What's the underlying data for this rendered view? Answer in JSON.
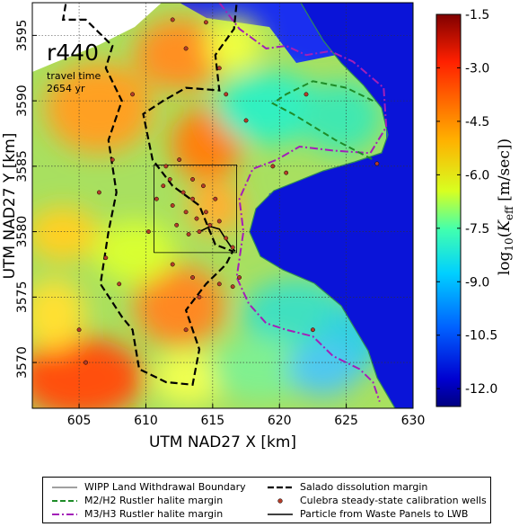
{
  "chart_data": {
    "type": "heatmap",
    "title": "",
    "xlabel": "UTM NAD27 X [km]",
    "ylabel": "UTM NAD27 Y [km]",
    "xlim": [
      601.5,
      630
    ],
    "ylim": [
      3566.5,
      3597.5
    ],
    "x_ticks": [
      "605",
      "610",
      "615",
      "620",
      "625",
      "630"
    ],
    "y_ticks": [
      "3570",
      "3575",
      "3580",
      "3585",
      "3590",
      "3595"
    ],
    "x_tick_values": [
      605,
      610,
      615,
      620,
      625,
      630
    ],
    "y_tick_values": [
      3570,
      3575,
      3580,
      3585,
      3590,
      3595
    ],
    "grid": true,
    "realization_label": "r440",
    "travel_time_line1": "travel time",
    "travel_time_line2": "2654 yr",
    "colorbar": {
      "label": "log10(Keff [m/sec])",
      "range": [
        -12.5,
        -1.5
      ],
      "ticks": [
        "-1.5",
        "-3.0",
        "-4.5",
        "-6.0",
        "-7.5",
        "-9.0",
        "-10.5",
        "-12.0"
      ],
      "tick_values": [
        -1.5,
        -3.0,
        -4.5,
        -6.0,
        -7.5,
        -9.0,
        -10.5,
        -12.0
      ],
      "colormap": "jet"
    },
    "wipp_boundary": [
      [
        610.6,
        3578.4
      ],
      [
        616.8,
        3578.4
      ],
      [
        616.8,
        3585.1
      ],
      [
        610.6,
        3585.1
      ]
    ],
    "salado_margin": [
      [
        604,
        3597.4
      ],
      [
        603.8,
        3596.2
      ],
      [
        605.5,
        3596.2
      ],
      [
        607.5,
        3594.2
      ],
      [
        607.0,
        3592.5
      ],
      [
        608.2,
        3590.0
      ],
      [
        607.2,
        3587.0
      ],
      [
        607.8,
        3583.0
      ],
      [
        607.2,
        3580.0
      ],
      [
        606.6,
        3576.0
      ],
      [
        608.2,
        3573.5
      ],
      [
        609.0,
        3572.5
      ],
      [
        609.5,
        3569.5
      ],
      [
        611.5,
        3568.5
      ],
      [
        613.5,
        3568.3
      ],
      [
        614.0,
        3571.0
      ],
      [
        613.0,
        3574.0
      ],
      [
        614.5,
        3576.0
      ],
      [
        616.0,
        3577.5
      ],
      [
        616.5,
        3578.5
      ],
      [
        615.2,
        3579.0
      ],
      [
        614.0,
        3582.0
      ],
      [
        612.0,
        3583.5
      ],
      [
        610.5,
        3585.5
      ],
      [
        609.8,
        3589.0
      ],
      [
        611.3,
        3590.0
      ],
      [
        613.0,
        3591.0
      ],
      [
        615.5,
        3590.8
      ],
      [
        615.2,
        3593.5
      ],
      [
        616.6,
        3595.5
      ],
      [
        616.8,
        3597.5
      ]
    ],
    "m2h2_margin": [
      [
        627.0,
        3590.0
      ],
      [
        625.0,
        3591.0
      ],
      [
        622.5,
        3591.5
      ],
      [
        620.5,
        3590.5
      ],
      [
        619.5,
        3589.8
      ],
      [
        621.0,
        3589.0
      ],
      [
        624.2,
        3587.0
      ],
      [
        627.0,
        3585.5
      ]
    ],
    "m3h3_margin": [
      [
        615.5,
        3597.5
      ],
      [
        617.0,
        3595.5
      ],
      [
        619.0,
        3594.0
      ],
      [
        620.5,
        3594.2
      ],
      [
        622.0,
        3593.5
      ],
      [
        623.8,
        3593.8
      ],
      [
        625.5,
        3593.0
      ],
      [
        627.8,
        3591.0
      ],
      [
        628.0,
        3588.0
      ],
      [
        626.8,
        3586.0
      ],
      [
        624.0,
        3586.2
      ],
      [
        621.5,
        3586.5
      ],
      [
        619.8,
        3585.5
      ],
      [
        618.0,
        3584.8
      ],
      [
        617.0,
        3582.5
      ],
      [
        617.3,
        3580.0
      ],
      [
        616.8,
        3576.5
      ],
      [
        617.7,
        3574.5
      ],
      [
        619.0,
        3573.0
      ],
      [
        620.5,
        3572.5
      ],
      [
        622.5,
        3572.0
      ],
      [
        624.0,
        3570.5
      ],
      [
        626.0,
        3569.5
      ],
      [
        627.0,
        3568.5
      ],
      [
        627.5,
        3567.0
      ]
    ],
    "wells": [
      [
        605.0,
        3572.5
      ],
      [
        605.5,
        3570.0
      ],
      [
        606.5,
        3583.0
      ],
      [
        607.5,
        3585.5
      ],
      [
        607.0,
        3578.0
      ],
      [
        608.0,
        3576.0
      ],
      [
        609.0,
        3590.5
      ],
      [
        610.2,
        3580.0
      ],
      [
        610.8,
        3582.5
      ],
      [
        611.3,
        3583.5
      ],
      [
        611.5,
        3585.0
      ],
      [
        611.8,
        3584.0
      ],
      [
        612.0,
        3582.0
      ],
      [
        612.3,
        3580.5
      ],
      [
        612.5,
        3585.5
      ],
      [
        612.8,
        3583.0
      ],
      [
        613.0,
        3581.5
      ],
      [
        613.2,
        3579.8
      ],
      [
        613.5,
        3584.0
      ],
      [
        613.5,
        3582.5
      ],
      [
        613.8,
        3581.0
      ],
      [
        614.0,
        3580.0
      ],
      [
        614.3,
        3583.5
      ],
      [
        614.5,
        3581.5
      ],
      [
        614.8,
        3580.5
      ],
      [
        615.2,
        3582.5
      ],
      [
        615.5,
        3580.8
      ],
      [
        616.0,
        3579.5
      ],
      [
        616.5,
        3578.8
      ],
      [
        612.0,
        3577.5
      ],
      [
        613.5,
        3576.5
      ],
      [
        614.0,
        3575.0
      ],
      [
        615.5,
        3576.0
      ],
      [
        616.5,
        3575.8
      ],
      [
        617.0,
        3576.5
      ],
      [
        613.0,
        3572.5
      ],
      [
        612.0,
        3596.2
      ],
      [
        613.0,
        3594.0
      ],
      [
        614.5,
        3596.0
      ],
      [
        615.5,
        3592.5
      ],
      [
        616.0,
        3590.5
      ],
      [
        617.5,
        3588.5
      ],
      [
        619.5,
        3585.0
      ],
      [
        620.5,
        3584.5
      ],
      [
        622.5,
        3572.5
      ],
      [
        622.0,
        3590.5
      ],
      [
        627.3,
        3585.2
      ]
    ],
    "particle_path": [
      [
        614.0,
        3580.0
      ],
      [
        614.8,
        3580.4
      ],
      [
        615.5,
        3580.2
      ],
      [
        616.0,
        3579.4
      ],
      [
        616.4,
        3578.8
      ],
      [
        616.7,
        3578.5
      ]
    ],
    "legend": {
      "wipp": "WIPP Land Withdrawal Boundary",
      "m2h2": "M2/H2 Rustler halite margin",
      "m3h3": "M3/H3 Rustler halite margin",
      "salado": "Salado dissolution margin",
      "wells": "Culebra steady-state calibration wells",
      "particle": "Particle from Waste Panels to LWB"
    },
    "colors": {
      "salado": "#000000",
      "m2h2": "#1e8c28",
      "m3h3": "#a31fb8",
      "well_fill": "#b43c28",
      "deep_blue": "#0000d0",
      "green_halo": "#2e8b57"
    }
  }
}
